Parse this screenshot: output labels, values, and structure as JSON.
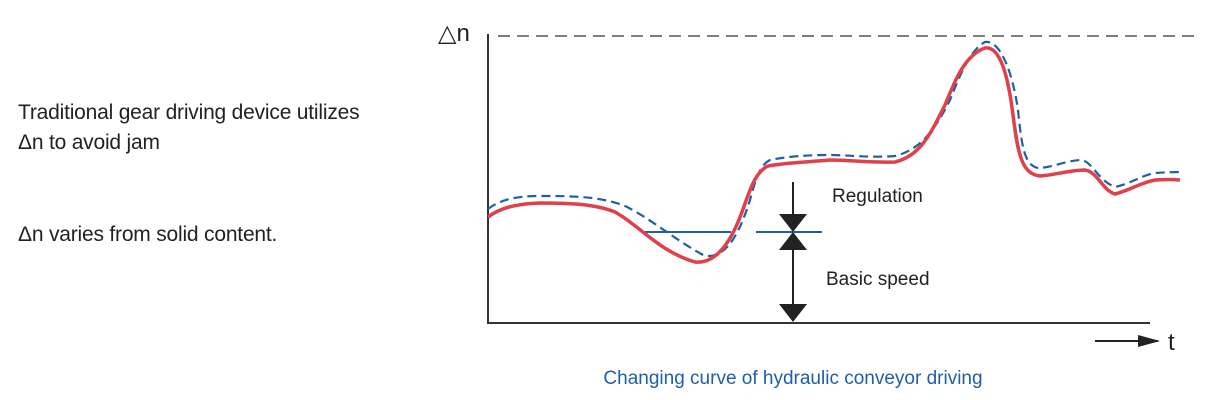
{
  "notes": {
    "line1": "Traditional gear driving device utilizes",
    "line2": "Δn to avoid jam",
    "line3": "Δn varies from solid content."
  },
  "diagram": {
    "y_axis_label": "△n",
    "x_axis_label": "t",
    "regulation_label": "Regulation",
    "basic_speed_label": "Basic speed",
    "caption": "Changing curve of hydraulic conveyor driving"
  },
  "colors": {
    "solid_curve": "#e0404a",
    "dashed_curve": "#1f5fa8",
    "basic_speed_line": "#1f5fa8",
    "axes": "#333333",
    "caption": "#1f5fa8"
  }
}
